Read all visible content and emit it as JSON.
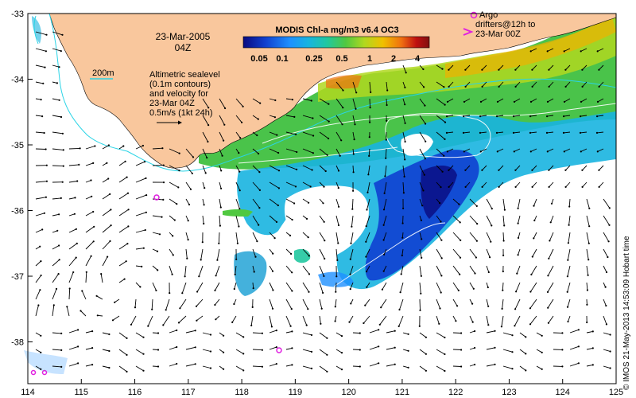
{
  "map": {
    "date_line1": "23-Mar-2005",
    "date_line2": "04Z",
    "colorbar_title": "MODIS Chl-a mg/m3 v6.4 OC3",
    "colorbar_ticks": [
      "0.05",
      "0.1",
      "0.25",
      "0.5",
      "1",
      "2",
      "4"
    ],
    "isobath_label": "200m",
    "altimetry_note": [
      "Altimetric sealevel",
      "(0.1m contours)",
      "and velocity for",
      "23-Mar 04Z",
      "0.5m/s (1kt 24h)"
    ],
    "argo_legend": [
      "Argo",
      "drifters@12h to",
      "23-Mar 00Z"
    ],
    "credit": "© IMOS 21-May-2013 14:53:09 Hobart time",
    "lon_ticks": [
      "114",
      "115",
      "116",
      "117",
      "118",
      "119",
      "120",
      "121",
      "122",
      "123",
      "124",
      "125"
    ],
    "lat_ticks": [
      "-33",
      "-34",
      "-35",
      "-36",
      "-37",
      "-38"
    ],
    "colors": {
      "land": "#f9c79d",
      "isobath": "#2ad4e6",
      "argo": "#e020e0",
      "colorbar": [
        "#0a0a80",
        "#1040d0",
        "#1e90ff",
        "#18b4e0",
        "#20c8a0",
        "#50c840",
        "#b0d820",
        "#f0c000",
        "#f07010",
        "#c01010",
        "#801010"
      ]
    }
  }
}
